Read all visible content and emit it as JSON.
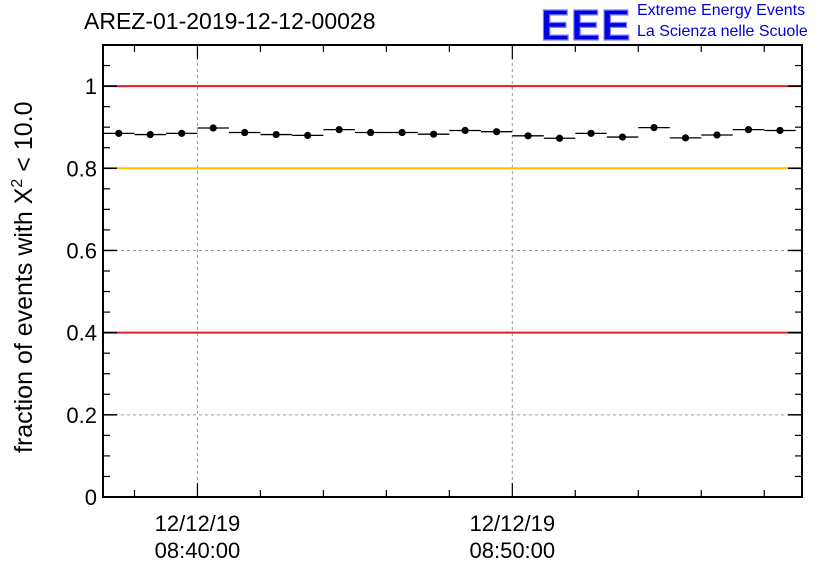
{
  "header": {
    "title": "AREZ-01-2019-12-12-00028",
    "logo_text": "EEE",
    "logo_line1": "Extreme Energy Events",
    "logo_line2": "La Scienza nelle Scuole"
  },
  "colors": {
    "red_line": "#e02020",
    "yellow_line": "#ffc000",
    "logo_blue": "#0000e0",
    "grid": "#9a9a9a",
    "marker": "#000000"
  },
  "chart_data": {
    "type": "scatter",
    "title": "AREZ-01-2019-12-12-00028",
    "ylabel_prefix": "fraction of events with ",
    "ylabel_symbol": "X",
    "ylabel_superscript": "2",
    "ylabel_suffix": " < 10.0",
    "xlabel": "",
    "ylim": [
      0,
      1.1
    ],
    "xlim_minutes": [
      -3.0,
      19.2
    ],
    "y_ticks": [
      0,
      0.2,
      0.4,
      0.6,
      0.8,
      1
    ],
    "y_tick_labels": [
      "0",
      "0.2",
      "0.4",
      "0.6",
      "0.8",
      "1"
    ],
    "y_grid": [
      0.2,
      0.6
    ],
    "x_major": [
      {
        "minute": 0,
        "date": "12/12/19",
        "time": "08:40:00"
      },
      {
        "minute": 10,
        "date": "12/12/19",
        "time": "08:50:00"
      }
    ],
    "x_minor_step_minutes": 2,
    "x_bin_width_minutes": 1,
    "reference_lines": [
      {
        "y": 1.0,
        "color": "red"
      },
      {
        "y": 0.8,
        "color": "yellow"
      },
      {
        "y": 0.4,
        "color": "red"
      }
    ],
    "series": [
      {
        "name": "fraction",
        "x_minutes": [
          -2.5,
          -1.5,
          -0.5,
          0.5,
          1.5,
          2.5,
          3.5,
          4.5,
          5.5,
          6.5,
          7.5,
          8.5,
          9.5,
          10.5,
          11.5,
          12.5,
          13.5,
          14.5,
          15.5,
          16.5,
          17.5,
          18.5
        ],
        "values": [
          0.885,
          0.882,
          0.885,
          0.898,
          0.887,
          0.882,
          0.88,
          0.894,
          0.887,
          0.887,
          0.883,
          0.892,
          0.889,
          0.879,
          0.873,
          0.885,
          0.876,
          0.899,
          0.874,
          0.881,
          0.894,
          0.892
        ]
      }
    ]
  }
}
